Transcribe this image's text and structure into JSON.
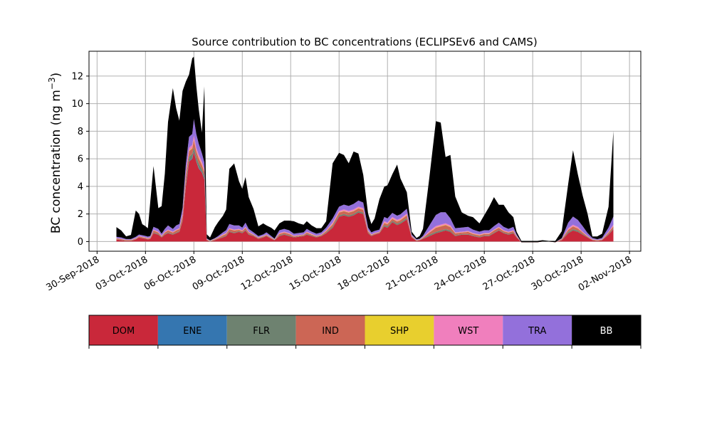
{
  "chart_data": {
    "type": "area",
    "stacked": true,
    "title": "Source contribution to BC concentrations (ECLIPSEv6 and CAMS)",
    "ylabel": "BC concentration (ng m",
    "ylabel_superscript": "−3",
    "ylabel_close": ")",
    "xlabel": "",
    "grid": true,
    "ylim": [
      -0.7,
      13.8
    ],
    "yticks": [
      0,
      2,
      4,
      6,
      8,
      10,
      12
    ],
    "xlim_days": [
      -0.5,
      33.7
    ],
    "xticks": [
      {
        "day": 0,
        "label": "30-Sep-2018"
      },
      {
        "day": 3,
        "label": "03-Oct-2018"
      },
      {
        "day": 6,
        "label": "06-Oct-2018"
      },
      {
        "day": 9,
        "label": "09-Oct-2018"
      },
      {
        "day": 12,
        "label": "12-Oct-2018"
      },
      {
        "day": 15,
        "label": "15-Oct-2018"
      },
      {
        "day": 18,
        "label": "18-Oct-2018"
      },
      {
        "day": 21,
        "label": "21-Oct-2018"
      },
      {
        "day": 24,
        "label": "24-Oct-2018"
      },
      {
        "day": 27,
        "label": "27-Oct-2018"
      },
      {
        "day": 30,
        "label": "30-Oct-2018"
      },
      {
        "day": 33,
        "label": "02-Nov-2018"
      }
    ],
    "legend_position": "below",
    "x_days": [
      1.2,
      1.5,
      1.8,
      2.1,
      2.4,
      2.6,
      2.8,
      3.0,
      3.15,
      3.3,
      3.5,
      3.8,
      4.0,
      4.2,
      4.4,
      4.7,
      4.9,
      5.1,
      5.3,
      5.5,
      5.7,
      5.9,
      6.0,
      6.15,
      6.3,
      6.5,
      6.65,
      6.8,
      7.0,
      7.3,
      7.5,
      7.8,
      8.0,
      8.2,
      8.5,
      8.8,
      9.0,
      9.2,
      9.4,
      9.7,
      10.0,
      10.3,
      10.5,
      10.8,
      11.0,
      11.3,
      11.6,
      11.9,
      12.2,
      12.5,
      12.8,
      13.0,
      13.3,
      13.6,
      13.9,
      14.2,
      14.6,
      15.0,
      15.3,
      15.6,
      15.9,
      16.2,
      16.5,
      16.8,
      17.0,
      17.2,
      17.5,
      17.8,
      18.0,
      18.3,
      18.6,
      18.8,
      19.2,
      19.5,
      19.8,
      20.0,
      20.2,
      20.6,
      21.0,
      21.3,
      21.6,
      21.9,
      22.2,
      22.6,
      23.0,
      23.3,
      23.7,
      24.0,
      24.3,
      24.6,
      24.9,
      25.2,
      25.5,
      25.8,
      26.0,
      26.3,
      26.6,
      27.0,
      27.3,
      27.6,
      28.0,
      28.4,
      28.8,
      29.2,
      29.5,
      29.8,
      30.1,
      30.4,
      30.7,
      31.0,
      31.3,
      31.7,
      32.0
    ],
    "series": [
      {
        "name": "DOM",
        "color": "#c9283a",
        "values": [
          0.15,
          0.1,
          0.05,
          0.05,
          0.15,
          0.3,
          0.25,
          0.2,
          0.15,
          0.2,
          0.6,
          0.5,
          0.3,
          0.5,
          0.6,
          0.5,
          0.6,
          0.7,
          1.5,
          4.0,
          5.8,
          6.0,
          6.5,
          5.8,
          5.3,
          5.0,
          4.5,
          0.1,
          0.0,
          0.1,
          0.2,
          0.3,
          0.4,
          0.7,
          0.6,
          0.7,
          0.6,
          0.8,
          0.5,
          0.4,
          0.2,
          0.3,
          0.4,
          0.2,
          0.1,
          0.4,
          0.5,
          0.4,
          0.3,
          0.35,
          0.4,
          0.5,
          0.4,
          0.3,
          0.4,
          0.6,
          1.0,
          1.8,
          1.9,
          1.8,
          1.9,
          2.1,
          2.0,
          0.6,
          0.4,
          0.5,
          0.6,
          1.1,
          1.0,
          1.4,
          1.2,
          1.3,
          1.6,
          0.3,
          0.05,
          0.1,
          0.2,
          0.4,
          0.6,
          0.7,
          0.8,
          0.7,
          0.4,
          0.5,
          0.5,
          0.4,
          0.3,
          0.4,
          0.4,
          0.6,
          0.8,
          0.6,
          0.5,
          0.6,
          0.3,
          -0.05,
          -0.05,
          -0.05,
          -0.05,
          0.0,
          0.0,
          -0.05,
          0.1,
          0.6,
          0.8,
          0.7,
          0.5,
          0.3,
          0.1,
          0.05,
          0.1,
          0.5,
          0.9
        ]
      },
      {
        "name": "ENE",
        "color": "#3576b0",
        "values": [
          0.0,
          0.0,
          0.0,
          0.0,
          0.0,
          0.0,
          0.0,
          0.0,
          0.0,
          0.0,
          0.0,
          0.0,
          0.0,
          0.0,
          0.0,
          0.0,
          0.0,
          0.0,
          0.0,
          0.05,
          0.05,
          0.05,
          0.05,
          0.05,
          0.05,
          0.05,
          0.05,
          0.0,
          0.0,
          0.0,
          0.0,
          0.0,
          0.0,
          0.0,
          0.0,
          0.0,
          0.0,
          0.0,
          0.0,
          0.0,
          0.0,
          0.0,
          0.0,
          0.0,
          0.0,
          0.0,
          0.0,
          0.0,
          0.0,
          0.0,
          0.0,
          0.0,
          0.0,
          0.0,
          0.0,
          0.0,
          0.0,
          0.0,
          0.0,
          0.0,
          0.0,
          0.0,
          0.0,
          0.0,
          0.0,
          0.0,
          0.0,
          0.0,
          0.0,
          0.0,
          0.0,
          0.0,
          0.0,
          0.0,
          0.0,
          0.0,
          0.0,
          0.0,
          0.0,
          0.0,
          0.0,
          0.0,
          0.0,
          0.0,
          0.0,
          0.0,
          0.0,
          0.0,
          0.0,
          0.0,
          0.0,
          0.0,
          0.0,
          0.0,
          0.0,
          0.0,
          0.0,
          0.0,
          0.0,
          0.0,
          0.0,
          0.0,
          0.0,
          0.0,
          0.0,
          0.0,
          0.0,
          0.0,
          0.0,
          0.0,
          0.0,
          0.0,
          0.0
        ]
      },
      {
        "name": "FLR",
        "color": "#6e8270",
        "values": [
          0.02,
          0.02,
          0.02,
          0.02,
          0.02,
          0.02,
          0.02,
          0.02,
          0.02,
          0.02,
          0.05,
          0.05,
          0.03,
          0.05,
          0.05,
          0.05,
          0.05,
          0.05,
          0.1,
          0.2,
          0.3,
          0.3,
          0.3,
          0.3,
          0.3,
          0.2,
          0.2,
          0.02,
          0.02,
          0.02,
          0.02,
          0.05,
          0.05,
          0.05,
          0.05,
          0.05,
          0.05,
          0.05,
          0.05,
          0.03,
          0.02,
          0.03,
          0.03,
          0.02,
          0.02,
          0.05,
          0.05,
          0.05,
          0.03,
          0.03,
          0.03,
          0.05,
          0.05,
          0.03,
          0.03,
          0.05,
          0.1,
          0.1,
          0.1,
          0.1,
          0.1,
          0.1,
          0.1,
          0.05,
          0.03,
          0.03,
          0.03,
          0.1,
          0.1,
          0.1,
          0.1,
          0.1,
          0.1,
          0.03,
          0.02,
          0.02,
          0.03,
          0.1,
          0.1,
          0.1,
          0.1,
          0.1,
          0.05,
          0.05,
          0.05,
          0.05,
          0.05,
          0.05,
          0.05,
          0.05,
          0.05,
          0.05,
          0.05,
          0.05,
          0.03,
          0.0,
          0.0,
          0.0,
          0.0,
          0.0,
          0.0,
          0.0,
          0.02,
          0.1,
          0.1,
          0.1,
          0.05,
          0.03,
          0.02,
          0.02,
          0.02,
          0.05,
          0.05
        ]
      },
      {
        "name": "IND",
        "color": "#cc6655",
        "values": [
          0.05,
          0.05,
          0.03,
          0.03,
          0.05,
          0.05,
          0.05,
          0.05,
          0.05,
          0.05,
          0.15,
          0.1,
          0.05,
          0.1,
          0.15,
          0.1,
          0.15,
          0.15,
          0.3,
          0.5,
          0.4,
          0.4,
          0.5,
          0.4,
          0.4,
          0.3,
          0.3,
          0.03,
          0.02,
          0.05,
          0.05,
          0.1,
          0.1,
          0.15,
          0.15,
          0.1,
          0.1,
          0.15,
          0.1,
          0.05,
          0.05,
          0.05,
          0.05,
          0.05,
          0.02,
          0.1,
          0.1,
          0.1,
          0.05,
          0.05,
          0.05,
          0.1,
          0.05,
          0.05,
          0.05,
          0.1,
          0.15,
          0.2,
          0.2,
          0.2,
          0.2,
          0.2,
          0.2,
          0.1,
          0.05,
          0.05,
          0.05,
          0.15,
          0.15,
          0.15,
          0.15,
          0.15,
          0.2,
          0.05,
          0.02,
          0.02,
          0.05,
          0.15,
          0.3,
          0.3,
          0.3,
          0.25,
          0.15,
          0.1,
          0.15,
          0.1,
          0.1,
          0.1,
          0.1,
          0.15,
          0.15,
          0.1,
          0.1,
          0.1,
          0.05,
          0.0,
          0.0,
          0.0,
          0.0,
          0.0,
          0.0,
          0.0,
          0.05,
          0.15,
          0.2,
          0.15,
          0.1,
          0.05,
          0.02,
          0.02,
          0.02,
          0.1,
          0.15
        ]
      },
      {
        "name": "SHP",
        "color": "#e8cf2e",
        "values": [
          0.01,
          0.01,
          0.01,
          0.01,
          0.01,
          0.01,
          0.01,
          0.01,
          0.01,
          0.01,
          0.02,
          0.02,
          0.01,
          0.02,
          0.02,
          0.02,
          0.02,
          0.02,
          0.02,
          0.05,
          0.05,
          0.05,
          0.05,
          0.05,
          0.05,
          0.05,
          0.05,
          0.01,
          0.01,
          0.01,
          0.01,
          0.02,
          0.02,
          0.02,
          0.02,
          0.02,
          0.02,
          0.02,
          0.02,
          0.01,
          0.01,
          0.01,
          0.01,
          0.01,
          0.01,
          0.02,
          0.02,
          0.02,
          0.01,
          0.01,
          0.01,
          0.02,
          0.02,
          0.01,
          0.01,
          0.02,
          0.03,
          0.03,
          0.03,
          0.03,
          0.03,
          0.03,
          0.03,
          0.02,
          0.01,
          0.01,
          0.01,
          0.03,
          0.03,
          0.03,
          0.03,
          0.03,
          0.03,
          0.01,
          0.01,
          0.01,
          0.01,
          0.02,
          0.03,
          0.03,
          0.03,
          0.03,
          0.02,
          0.02,
          0.02,
          0.02,
          0.02,
          0.02,
          0.02,
          0.02,
          0.02,
          0.02,
          0.02,
          0.02,
          0.01,
          0.0,
          0.0,
          0.0,
          0.0,
          0.0,
          0.0,
          0.0,
          0.01,
          0.02,
          0.02,
          0.02,
          0.02,
          0.01,
          0.01,
          0.01,
          0.01,
          0.02,
          0.02
        ]
      },
      {
        "name": "WST",
        "color": "#f07fbd",
        "values": [
          0.02,
          0.02,
          0.02,
          0.02,
          0.02,
          0.03,
          0.03,
          0.03,
          0.03,
          0.03,
          0.05,
          0.05,
          0.03,
          0.05,
          0.05,
          0.05,
          0.05,
          0.05,
          0.1,
          0.2,
          0.2,
          0.2,
          0.3,
          0.2,
          0.2,
          0.2,
          0.15,
          0.02,
          0.01,
          0.02,
          0.02,
          0.05,
          0.05,
          0.05,
          0.05,
          0.05,
          0.05,
          0.05,
          0.05,
          0.03,
          0.02,
          0.03,
          0.03,
          0.02,
          0.01,
          0.05,
          0.05,
          0.05,
          0.03,
          0.03,
          0.03,
          0.05,
          0.05,
          0.03,
          0.03,
          0.05,
          0.1,
          0.1,
          0.1,
          0.1,
          0.1,
          0.1,
          0.1,
          0.05,
          0.03,
          0.03,
          0.03,
          0.1,
          0.1,
          0.1,
          0.1,
          0.1,
          0.1,
          0.03,
          0.01,
          0.01,
          0.03,
          0.1,
          0.1,
          0.1,
          0.1,
          0.1,
          0.05,
          0.05,
          0.05,
          0.05,
          0.05,
          0.05,
          0.05,
          0.05,
          0.05,
          0.05,
          0.05,
          0.05,
          0.03,
          0.0,
          0.0,
          0.0,
          0.0,
          0.0,
          0.0,
          0.0,
          0.02,
          0.1,
          0.1,
          0.1,
          0.05,
          0.03,
          0.02,
          0.02,
          0.02,
          0.05,
          0.1
        ]
      },
      {
        "name": "TRA",
        "color": "#9370db",
        "values": [
          0.1,
          0.1,
          0.05,
          0.05,
          0.1,
          0.1,
          0.1,
          0.1,
          0.1,
          0.1,
          0.2,
          0.2,
          0.15,
          0.2,
          0.3,
          0.2,
          0.3,
          0.3,
          0.4,
          0.6,
          0.8,
          0.8,
          1.2,
          1.0,
          0.8,
          0.6,
          0.5,
          0.05,
          0.03,
          0.05,
          0.1,
          0.15,
          0.2,
          0.3,
          0.3,
          0.25,
          0.2,
          0.3,
          0.2,
          0.15,
          0.1,
          0.1,
          0.15,
          0.1,
          0.05,
          0.2,
          0.2,
          0.2,
          0.15,
          0.15,
          0.15,
          0.2,
          0.15,
          0.15,
          0.15,
          0.2,
          0.3,
          0.3,
          0.35,
          0.35,
          0.4,
          0.45,
          0.4,
          0.2,
          0.15,
          0.15,
          0.15,
          0.3,
          0.3,
          0.3,
          0.3,
          0.3,
          0.35,
          0.1,
          0.05,
          0.05,
          0.1,
          0.4,
          0.8,
          0.9,
          0.8,
          0.5,
          0.3,
          0.3,
          0.3,
          0.25,
          0.2,
          0.2,
          0.2,
          0.25,
          0.3,
          0.25,
          0.2,
          0.25,
          0.1,
          0.0,
          0.0,
          0.0,
          0.0,
          0.0,
          0.0,
          0.0,
          0.05,
          0.4,
          0.6,
          0.5,
          0.4,
          0.2,
          0.1,
          0.05,
          0.1,
          0.3,
          0.6
        ]
      },
      {
        "name": "BB",
        "color": "#000000",
        "values": [
          0.7,
          0.5,
          0.2,
          0.3,
          1.9,
          1.5,
          0.8,
          0.7,
          0.6,
          2.5,
          4.4,
          1.5,
          2.0,
          4.0,
          7.5,
          10.2,
          8.5,
          7.5,
          8.5,
          6.0,
          4.5,
          5.5,
          4.5,
          3.5,
          2.5,
          1.5,
          5.5,
          0.3,
          0.2,
          0.8,
          1.0,
          1.2,
          1.5,
          4.0,
          4.5,
          3.2,
          2.8,
          3.3,
          2.3,
          1.7,
          0.7,
          0.8,
          0.5,
          0.6,
          0.6,
          0.5,
          0.6,
          0.7,
          0.9,
          0.7,
          0.55,
          0.55,
          0.45,
          0.4,
          0.3,
          0.45,
          4.0,
          3.9,
          3.6,
          3.1,
          3.8,
          3.4,
          2.0,
          1.0,
          0.6,
          0.9,
          2.2,
          2.2,
          2.4,
          2.8,
          3.7,
          2.6,
          1.2,
          0.2,
          0.1,
          0.2,
          0.5,
          3.5,
          6.8,
          6.5,
          4.0,
          4.6,
          2.3,
          1.1,
          0.8,
          0.9,
          0.6,
          1.1,
          1.7,
          2.1,
          1.3,
          1.6,
          1.2,
          0.7,
          0.2,
          0.1,
          0.1,
          0.1,
          0.1,
          0.1,
          0.05,
          0.1,
          0.5,
          2.8,
          4.8,
          3.3,
          2.2,
          1.4,
          0.1,
          0.2,
          0.3,
          1.5,
          6.2
        ]
      }
    ]
  }
}
